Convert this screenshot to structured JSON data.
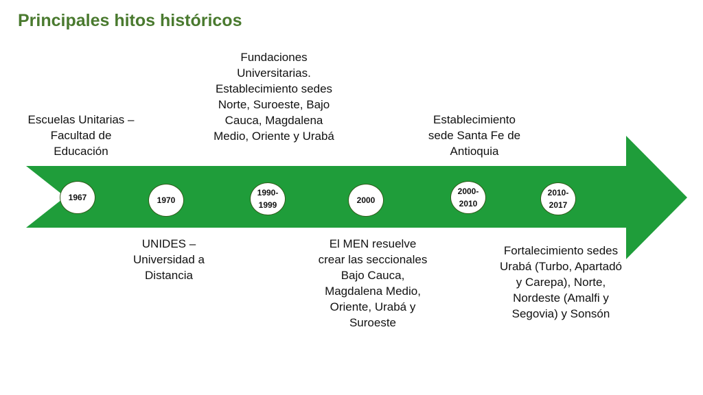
{
  "title": "Principales hitos históricos",
  "colors": {
    "title": "#4a7a2f",
    "arrow": "#1f9d3a",
    "node_border": "#2f5a18"
  },
  "milestones": [
    {
      "year": "1967",
      "text": "Escuelas Unitarias – Facultad de Educación"
    },
    {
      "year": "1970",
      "text": "UNIDES – Universidad a Distancia"
    },
    {
      "year": "1990-\n1999",
      "text": "Fundaciones Universitarias. Establecimiento sedes Norte, Suroeste, Bajo Cauca, Magdalena Medio, Oriente y Urabá"
    },
    {
      "year": "2000",
      "text": "El MEN resuelve crear las seccionales Bajo Cauca, Magdalena Medio, Oriente, Urabá y Suroeste"
    },
    {
      "year": "2000-\n2010",
      "text": "Establecimiento sede Santa Fe de Antioquia"
    },
    {
      "year": "2010-\n2017",
      "text": "Fortalecimiento sedes Urabá (Turbo, Apartadó y Carepa), Norte, Nordeste (Amalfi y Segovia) y Sonsón"
    }
  ]
}
